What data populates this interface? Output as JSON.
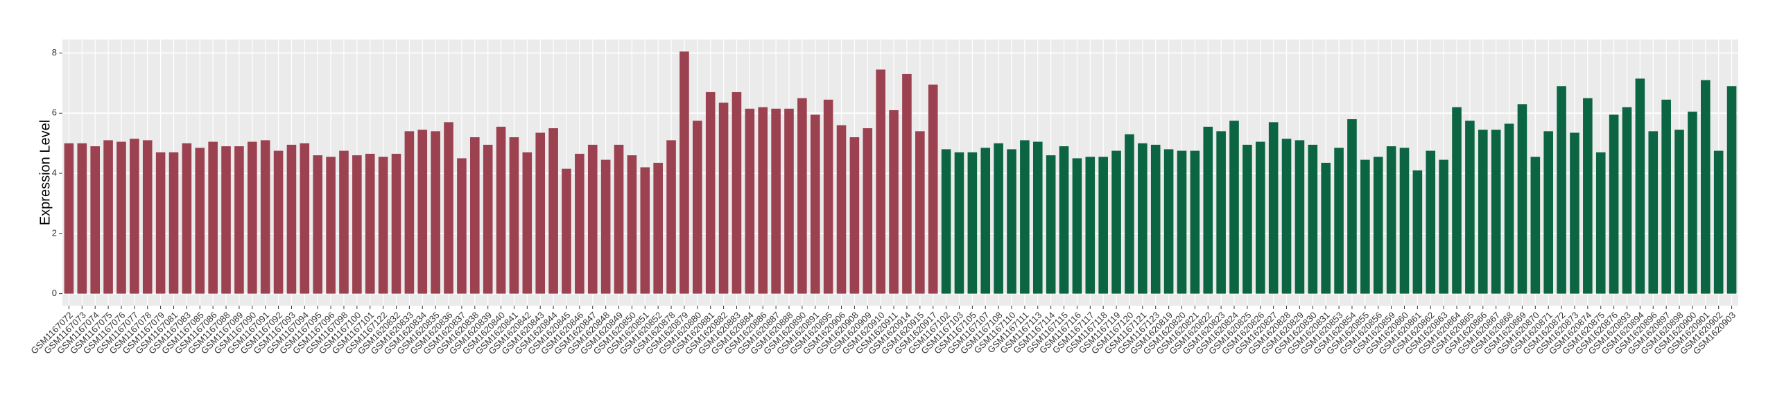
{
  "chart_data": {
    "type": "bar",
    "y_label": "Expression Level",
    "ylim": [
      -0.4,
      8.45
    ],
    "yticks": [
      0,
      2,
      4,
      6,
      8
    ],
    "grid": true,
    "groups": [
      {
        "color": "#9b4150",
        "categories": [
          "GSM1167072",
          "GSM1167073",
          "GSM1167074",
          "GSM1167075",
          "GSM1167076",
          "GSM1167077",
          "GSM1167078",
          "GSM1167079",
          "GSM1167081",
          "GSM1167083",
          "GSM1167085",
          "GSM1167086",
          "GSM1167088",
          "GSM1167089",
          "GSM1167090",
          "GSM1167091",
          "GSM1167092",
          "GSM1167093",
          "GSM1167094",
          "GSM1167095",
          "GSM1167096",
          "GSM1167098",
          "GSM1167100",
          "GSM1167101",
          "GSM1167122",
          "GSM1620832",
          "GSM1620833",
          "GSM1620834",
          "GSM1620835",
          "GSM1620836",
          "GSM1620837",
          "GSM1620838",
          "GSM1620839",
          "GSM1620840",
          "GSM1620841",
          "GSM1620842",
          "GSM1620843",
          "GSM1620844",
          "GSM1620845",
          "GSM1620846",
          "GSM1620847",
          "GSM1620848",
          "GSM1620849",
          "GSM1620850",
          "GSM1620851",
          "GSM1620852",
          "GSM1620878",
          "GSM1620879",
          "GSM1620880",
          "GSM1620881",
          "GSM1620882",
          "GSM1620883",
          "GSM1620884",
          "GSM1620886",
          "GSM1620887",
          "GSM1620888",
          "GSM1620890",
          "GSM1620891",
          "GSM1620895",
          "GSM1620906",
          "GSM1620908",
          "GSM1620909",
          "GSM1620910",
          "GSM1620911",
          "GSM1620914",
          "GSM1620915",
          "GSM1620917"
        ],
        "values": [
          5.0,
          5.0,
          4.9,
          5.1,
          5.05,
          5.15,
          5.1,
          4.7,
          4.7,
          5.0,
          4.85,
          5.05,
          4.9,
          4.9,
          5.05,
          5.1,
          4.75,
          4.95,
          5.0,
          4.6,
          4.55,
          4.75,
          4.6,
          4.65,
          4.55,
          4.65,
          5.4,
          5.45,
          5.4,
          5.7,
          4.5,
          5.2,
          4.95,
          5.55,
          5.2,
          4.7,
          5.35,
          5.5,
          4.15,
          4.65,
          4.95,
          4.45,
          4.95,
          4.6,
          4.2,
          4.35,
          5.1,
          8.05,
          5.75,
          6.7,
          6.35,
          6.7,
          6.15,
          6.2,
          6.15,
          6.15,
          6.5,
          5.95,
          6.45,
          5.6,
          5.2,
          5.5,
          7.45,
          6.1,
          7.3,
          5.4,
          6.95
        ]
      },
      {
        "color": "#0b6543",
        "categories": [
          "GSM1167102",
          "GSM1167103",
          "GSM1167105",
          "GSM1167107",
          "GSM1167108",
          "GSM1167110",
          "GSM1167111",
          "GSM1167113",
          "GSM1167114",
          "GSM1167115",
          "GSM1167116",
          "GSM1167117",
          "GSM1167118",
          "GSM1167119",
          "GSM1167120",
          "GSM1167121",
          "GSM1167123",
          "GSM1620819",
          "GSM1620820",
          "GSM1620821",
          "GSM1620822",
          "GSM1620823",
          "GSM1620824",
          "GSM1620825",
          "GSM1620826",
          "GSM1620827",
          "GSM1620828",
          "GSM1620829",
          "GSM1620830",
          "GSM1620831",
          "GSM1620853",
          "GSM1620854",
          "GSM1620855",
          "GSM1620856",
          "GSM1620859",
          "GSM1620860",
          "GSM1620861",
          "GSM1620862",
          "GSM1620863",
          "GSM1620864",
          "GSM1620865",
          "GSM1620866",
          "GSM1620867",
          "GSM1620868",
          "GSM1620869",
          "GSM1620870",
          "GSM1620871",
          "GSM1620872",
          "GSM1620873",
          "GSM1620874",
          "GSM1620875",
          "GSM1620876",
          "GSM1620893",
          "GSM1620894",
          "GSM1620896",
          "GSM1620897",
          "GSM1620898",
          "GSM1620900",
          "GSM1620901",
          "GSM1620902",
          "GSM1620903"
        ],
        "values": [
          4.8,
          4.7,
          4.7,
          4.85,
          5.0,
          4.8,
          5.1,
          5.05,
          4.6,
          4.9,
          4.5,
          4.55,
          4.55,
          4.75,
          5.3,
          5.0,
          4.95,
          4.8,
          4.75,
          4.75,
          5.55,
          5.4,
          5.75,
          4.95,
          5.05,
          5.7,
          5.15,
          5.1,
          4.95,
          4.35,
          4.85,
          5.8,
          4.45,
          4.55,
          4.9,
          4.85,
          4.1,
          4.75,
          4.45,
          6.2,
          5.75,
          5.45,
          5.45,
          5.65,
          6.3,
          4.55,
          5.4,
          6.9,
          5.35,
          6.5,
          4.7,
          5.95,
          6.2,
          7.15,
          5.4,
          6.45,
          5.45,
          6.05,
          7.1,
          4.75,
          6.9
        ]
      }
    ]
  }
}
